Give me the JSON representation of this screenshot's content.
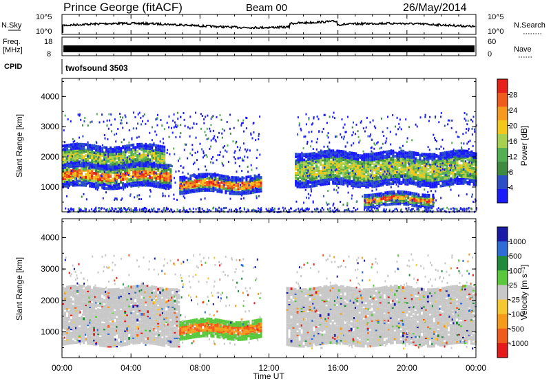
{
  "header": {
    "station": "Prince George (fitACF)",
    "beam": "Beam 00",
    "date": "26/May/2014"
  },
  "left_labels": {
    "nsky": "N.Sky",
    "nsky_top": "10^5",
    "nsky_bottom": "10^0",
    "freq_line1": "Freq.",
    "freq_line2": "[MHz]",
    "freq_top": "18",
    "freq_bottom": "8",
    "cpid": "CPID"
  },
  "right_labels": {
    "nsearch": "N.Search",
    "nsearch_top": "10^5",
    "nsearch_bottom": "10^0",
    "nave": "Nave",
    "nave_top": "60",
    "nave_bottom": "0"
  },
  "cpid_text": "twofsound 3503",
  "colors": {
    "power_scale": [
      "#1a1aff",
      "#2b4fc7",
      "#3e8a3e",
      "#52b052",
      "#a8d050",
      "#f3c81a",
      "#f59a1f",
      "#f05a1a",
      "#e8201a"
    ],
    "velocity_scale": [
      "#1a1aa8",
      "#2d6bd6",
      "#1f8a3a",
      "#5ac83c",
      "#c8c8c8",
      "#f5c832",
      "#f59a1a",
      "#f05a1a",
      "#e61a1a"
    ],
    "frame": "#000000"
  },
  "chart_data": [
    {
      "type": "heatmap",
      "title": "",
      "xlabel": "",
      "ylabel": "Slant Range [km]",
      "y_ticks": [
        "1000",
        "2000",
        "3000",
        "4000"
      ],
      "ylim": [
        180,
        4600
      ],
      "colorbar_label": "Power [dB]",
      "colorbar_ticks": [
        "4",
        "8",
        "12",
        "16",
        "20",
        "24",
        "28"
      ],
      "bands": [
        {
          "x_start": 0.0,
          "x_end": 6.3,
          "y_center": 1400,
          "y_halfwidth": 220,
          "level": "high"
        },
        {
          "x_start": 0.0,
          "x_end": 6.0,
          "y_center": 2000,
          "y_halfwidth": 200,
          "level": "mid"
        },
        {
          "x_start": 6.8,
          "x_end": 11.5,
          "y_center": 1100,
          "y_halfwidth": 150,
          "level": "high"
        },
        {
          "x_start": 13.5,
          "x_end": 24.0,
          "y_center": 1600,
          "y_halfwidth": 300,
          "level": "mid"
        },
        {
          "x_start": 17.5,
          "x_end": 21.5,
          "y_center": 600,
          "y_halfwidth": 120,
          "level": "high"
        }
      ]
    },
    {
      "type": "heatmap",
      "title": "",
      "xlabel": "Time UT",
      "ylabel": "Slant Range [km]",
      "y_ticks": [
        "1000",
        "2000",
        "3000",
        "4000"
      ],
      "ylim": [
        180,
        4600
      ],
      "x_ticks": [
        "00:00",
        "04:00",
        "08:00",
        "12:00",
        "16:00",
        "20:00",
        "00:00"
      ],
      "xlim": [
        0,
        24
      ],
      "colorbar_label": "Velocity [m s⁻¹]",
      "colorbar_ticks": [
        "1000",
        "500",
        "100",
        "25",
        "-25",
        "-100",
        "-500",
        "-1000"
      ],
      "bands": [
        {
          "x_start": 0.0,
          "x_end": 6.8,
          "y_center": 1500,
          "y_halfwidth": 500,
          "level": "ground"
        },
        {
          "x_start": 6.8,
          "x_end": 11.5,
          "y_center": 1100,
          "y_halfwidth": 160,
          "level": "negative"
        },
        {
          "x_start": 13.0,
          "x_end": 24.0,
          "y_center": 1500,
          "y_halfwidth": 500,
          "level": "ground"
        }
      ]
    }
  ]
}
